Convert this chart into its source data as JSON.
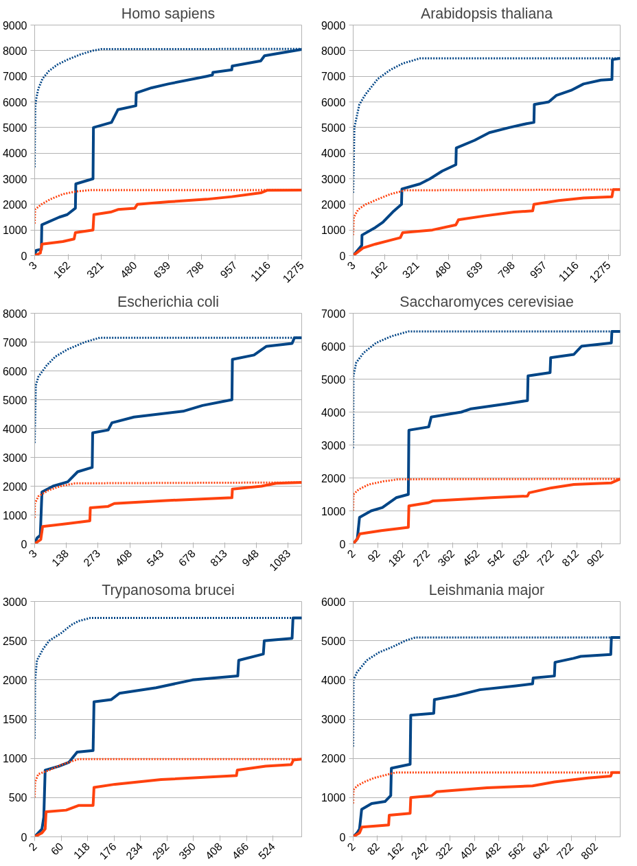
{
  "chart_data": [
    {
      "type": "line",
      "title": "Homo sapiens",
      "xlim": [
        3,
        1275
      ],
      "xticks": [
        3,
        162,
        321,
        480,
        639,
        798,
        957,
        1116,
        1275
      ],
      "ylim": [
        0,
        9000
      ],
      "yticks": [
        0,
        1000,
        2000,
        3000,
        4000,
        5000,
        6000,
        7000,
        8000,
        9000
      ],
      "grid": "y",
      "marker": "none",
      "series": [
        {
          "color": "#004586",
          "line_style": "dotted",
          "x": [
            3,
            4,
            6,
            10,
            20,
            40,
            70,
            110,
            160,
            220,
            280,
            320,
            1275
          ],
          "values": [
            3450,
            4500,
            5800,
            6100,
            6500,
            6900,
            7200,
            7450,
            7650,
            7850,
            8000,
            8060,
            8070
          ]
        },
        {
          "color": "#004586",
          "line_style": "solid",
          "x": [
            3,
            10,
            35,
            37,
            120,
            158,
            197,
            199,
            281,
            283,
            369,
            400,
            485,
            487,
            560,
            639,
            822,
            850,
            852,
            942,
            944,
            1080,
            1098,
            1275
          ],
          "values": [
            0,
            200,
            250,
            1200,
            1500,
            1600,
            1850,
            2800,
            3000,
            5000,
            5200,
            5700,
            5850,
            6350,
            6550,
            6700,
            7000,
            7050,
            7150,
            7250,
            7400,
            7600,
            7800,
            8050
          ]
        },
        {
          "color": "#ff420e",
          "line_style": "dotted",
          "x": [
            3,
            5,
            35,
            77,
            137,
            197,
            270,
            1275
          ],
          "values": [
            1250,
            1800,
            2000,
            2200,
            2400,
            2500,
            2560,
            2560
          ]
        },
        {
          "color": "#ff420e",
          "line_style": "solid",
          "x": [
            3,
            30,
            38,
            137,
            191,
            197,
            281,
            285,
            365,
            400,
            480,
            492,
            642,
            822,
            942,
            1080,
            1110,
            1275
          ],
          "values": [
            0,
            100,
            450,
            550,
            650,
            900,
            1000,
            1600,
            1700,
            1800,
            1850,
            2000,
            2100,
            2200,
            2300,
            2450,
            2550,
            2560
          ]
        }
      ]
    },
    {
      "type": "line",
      "title": "Arabidopsis thaliana",
      "xlim": [
        3,
        1334
      ],
      "xticks": [
        3,
        162,
        321,
        480,
        639,
        798,
        957,
        1116,
        1275
      ],
      "ylim": [
        0,
        9000
      ],
      "yticks": [
        0,
        1000,
        2000,
        3000,
        4000,
        5000,
        6000,
        7000,
        8000,
        9000
      ],
      "grid": "y",
      "marker": "none",
      "series": [
        {
          "color": "#004586",
          "line_style": "dotted",
          "x": [
            3,
            9,
            34,
            65,
            126,
            188,
            250,
            336,
            1334
          ],
          "values": [
            2450,
            5000,
            5900,
            6300,
            6900,
            7250,
            7500,
            7700,
            7700
          ]
        },
        {
          "color": "#004586",
          "line_style": "solid",
          "x": [
            3,
            46,
            47,
            114,
            151,
            200,
            244,
            246,
            336,
            386,
            447,
            515,
            517,
            608,
            682,
            781,
            867,
            904,
            906,
            978,
            1015,
            1089,
            1151,
            1238,
            1293,
            1295,
            1334
          ],
          "values": [
            0,
            400,
            800,
            1100,
            1300,
            1700,
            2000,
            2600,
            2800,
            3000,
            3300,
            3550,
            4200,
            4500,
            4800,
            5000,
            5150,
            5200,
            5900,
            6000,
            6250,
            6450,
            6700,
            6850,
            6880,
            7650,
            7700
          ]
        },
        {
          "color": "#ff420e",
          "line_style": "dotted",
          "x": [
            3,
            6,
            28,
            65,
            126,
            188,
            262,
            1334
          ],
          "values": [
            800,
            1500,
            1800,
            2000,
            2200,
            2400,
            2550,
            2580
          ]
        },
        {
          "color": "#ff420e",
          "line_style": "solid",
          "x": [
            3,
            52,
            114,
            188,
            238,
            250,
            398,
            515,
            528,
            657,
            805,
            898,
            904,
            1028,
            1151,
            1293,
            1299,
            1334
          ],
          "values": [
            0,
            300,
            450,
            600,
            700,
            900,
            1000,
            1200,
            1400,
            1550,
            1700,
            1750,
            2000,
            2150,
            2250,
            2300,
            2580,
            2580
          ]
        }
      ]
    },
    {
      "type": "line",
      "title": "Escherichia coli",
      "xlim": [
        3,
        1140
      ],
      "xticks": [
        3,
        138,
        273,
        408,
        543,
        678,
        813,
        948,
        1083
      ],
      "ylim": [
        0,
        8000
      ],
      "yticks": [
        0,
        1000,
        2000,
        3000,
        4000,
        5000,
        6000,
        7000,
        8000
      ],
      "grid": "y",
      "marker": "none",
      "series": [
        {
          "color": "#004586",
          "line_style": "dotted",
          "x": [
            3,
            8,
            19,
            55,
            92,
            144,
            217,
            280,
            1140
          ],
          "values": [
            3500,
            5500,
            5800,
            6200,
            6500,
            6750,
            7000,
            7150,
            7150
          ]
        },
        {
          "color": "#004586",
          "line_style": "solid",
          "x": [
            3,
            13,
            27,
            34,
            81,
            144,
            186,
            248,
            250,
            316,
            332,
            426,
            635,
            718,
            843,
            845,
            937,
            989,
            1099,
            1109,
            1140
          ],
          "values": [
            0,
            200,
            300,
            1800,
            2000,
            2150,
            2500,
            2650,
            3850,
            3950,
            4200,
            4400,
            4600,
            4800,
            5000,
            6400,
            6550,
            6850,
            6950,
            7150,
            7150
          ]
        },
        {
          "color": "#ff420e",
          "line_style": "dotted",
          "x": [
            3,
            4,
            19,
            60,
            113,
            175,
            1140
          ],
          "values": [
            900,
            1400,
            1650,
            1850,
            2000,
            2100,
            2130
          ]
        },
        {
          "color": "#ff420e",
          "line_style": "solid",
          "x": [
            3,
            29,
            37,
            144,
            238,
            240,
            316,
            342,
            561,
            843,
            845,
            969,
            1031,
            1140
          ],
          "values": [
            0,
            150,
            600,
            700,
            800,
            1250,
            1300,
            1400,
            1500,
            1600,
            1900,
            2000,
            2100,
            2130
          ]
        }
      ]
    },
    {
      "type": "line",
      "title": "Saccharomyces cerevisiae",
      "xlim": [
        2,
        970
      ],
      "xticks": [
        2,
        92,
        182,
        272,
        362,
        452,
        542,
        632,
        722,
        812,
        902
      ],
      "ylim": [
        0,
        7000
      ],
      "yticks": [
        0,
        1000,
        2000,
        3000,
        4000,
        5000,
        6000,
        7000
      ],
      "grid": "y",
      "marker": "none",
      "series": [
        {
          "color": "#004586",
          "line_style": "dotted",
          "x": [
            2,
            3,
            13,
            40,
            85,
            140,
            203,
            970
          ],
          "values": [
            2900,
            5100,
            5500,
            5800,
            6100,
            6300,
            6450,
            6450
          ]
        },
        {
          "color": "#004586",
          "line_style": "solid",
          "x": [
            2,
            17,
            25,
            67,
            108,
            158,
            202,
            204,
            276,
            285,
            394,
            430,
            557,
            634,
            636,
            716,
            718,
            802,
            830,
            938,
            940,
            970
          ],
          "values": [
            0,
            150,
            800,
            1000,
            1100,
            1400,
            1500,
            3450,
            3550,
            3850,
            4000,
            4100,
            4250,
            4350,
            5100,
            5200,
            5650,
            5750,
            6000,
            6100,
            6450,
            6450
          ]
        },
        {
          "color": "#ff420e",
          "line_style": "dotted",
          "x": [
            2,
            3,
            22,
            58,
            113,
            167,
            970
          ],
          "values": [
            1000,
            1500,
            1650,
            1800,
            1900,
            1960,
            1970
          ]
        },
        {
          "color": "#ff420e",
          "line_style": "solid",
          "x": [
            2,
            17,
            26,
            104,
            202,
            204,
            276,
            290,
            503,
            634,
            640,
            721,
            802,
            938,
            970
          ],
          "values": [
            0,
            150,
            300,
            400,
            500,
            1150,
            1250,
            1300,
            1400,
            1450,
            1550,
            1700,
            1800,
            1850,
            1970
          ]
        }
      ]
    },
    {
      "type": "line",
      "title": "Trypanosoma brucei",
      "xlim": [
        2,
        587
      ],
      "xticks": [
        2,
        60,
        118,
        176,
        234,
        292,
        350,
        408,
        466,
        524
      ],
      "ylim": [
        0,
        3000
      ],
      "yticks": [
        0,
        500,
        1000,
        1500,
        2000,
        2500,
        3000
      ],
      "grid": "y",
      "marker": "none",
      "series": [
        {
          "color": "#004586",
          "line_style": "dotted",
          "x": [
            2,
            3,
            7,
            21,
            34,
            61,
            82,
            98,
            124,
            587
          ],
          "values": [
            1250,
            2000,
            2250,
            2400,
            2500,
            2600,
            2700,
            2750,
            2790,
            2790
          ]
        },
        {
          "color": "#004586",
          "line_style": "solid",
          "x": [
            2,
            18,
            22,
            25,
            55,
            77,
            95,
            130,
            132,
            170,
            188,
            268,
            348,
            447,
            449,
            503,
            505,
            566,
            568,
            587
          ],
          "values": [
            0,
            100,
            250,
            850,
            900,
            950,
            1080,
            1100,
            1720,
            1750,
            1830,
            1900,
            2000,
            2050,
            2250,
            2330,
            2500,
            2530,
            2790,
            2790
          ]
        },
        {
          "color": "#ff420e",
          "line_style": "dotted",
          "x": [
            2,
            3,
            10,
            34,
            61,
            82,
            98,
            587
          ],
          "values": [
            500,
            700,
            800,
            850,
            920,
            960,
            990,
            990
          ]
        },
        {
          "color": "#ff420e",
          "line_style": "solid",
          "x": [
            2,
            18,
            25,
            27,
            71,
            98,
            130,
            132,
            178,
            279,
            444,
            446,
            508,
            564,
            569,
            587
          ],
          "values": [
            0,
            50,
            100,
            320,
            340,
            400,
            400,
            630,
            670,
            730,
            780,
            850,
            900,
            920,
            980,
            990
          ]
        }
      ]
    },
    {
      "type": "line",
      "title": "Leishmania major",
      "xlim": [
        2,
        883
      ],
      "xticks": [
        2,
        82,
        162,
        242,
        322,
        402,
        482,
        562,
        642,
        722,
        802
      ],
      "ylim": [
        0,
        6000
      ],
      "yticks": [
        0,
        1000,
        2000,
        3000,
        4000,
        5000,
        6000
      ],
      "grid": "y",
      "marker": "none",
      "series": [
        {
          "color": "#004586",
          "line_style": "dotted",
          "x": [
            2,
            3,
            15,
            47,
            87,
            134,
            174,
            206,
            883
          ],
          "values": [
            2300,
            4000,
            4200,
            4500,
            4700,
            4850,
            5000,
            5080,
            5080
          ]
        },
        {
          "color": "#004586",
          "line_style": "solid",
          "x": [
            2,
            15,
            23,
            30,
            63,
            107,
            126,
            128,
            190,
            192,
            268,
            270,
            341,
            420,
            539,
            594,
            596,
            666,
            668,
            729,
            753,
            852,
            854,
            883
          ],
          "values": [
            0,
            100,
            200,
            700,
            850,
            900,
            1050,
            1750,
            1850,
            3100,
            3150,
            3500,
            3600,
            3750,
            3850,
            3900,
            4050,
            4100,
            4450,
            4550,
            4600,
            4650,
            5080,
            5080
          ]
        },
        {
          "color": "#ff420e",
          "line_style": "dotted",
          "x": [
            2,
            3,
            15,
            39,
            71,
            111,
            142,
            883
          ],
          "values": [
            850,
            1200,
            1300,
            1400,
            1500,
            1580,
            1640,
            1640
          ]
        },
        {
          "color": "#ff420e",
          "line_style": "solid",
          "x": [
            2,
            23,
            31,
            119,
            121,
            190,
            192,
            261,
            277,
            444,
            594,
            666,
            777,
            852,
            856,
            883
          ],
          "values": [
            0,
            100,
            250,
            300,
            550,
            600,
            1000,
            1050,
            1150,
            1250,
            1300,
            1400,
            1500,
            1550,
            1640,
            1640
          ]
        }
      ]
    }
  ]
}
